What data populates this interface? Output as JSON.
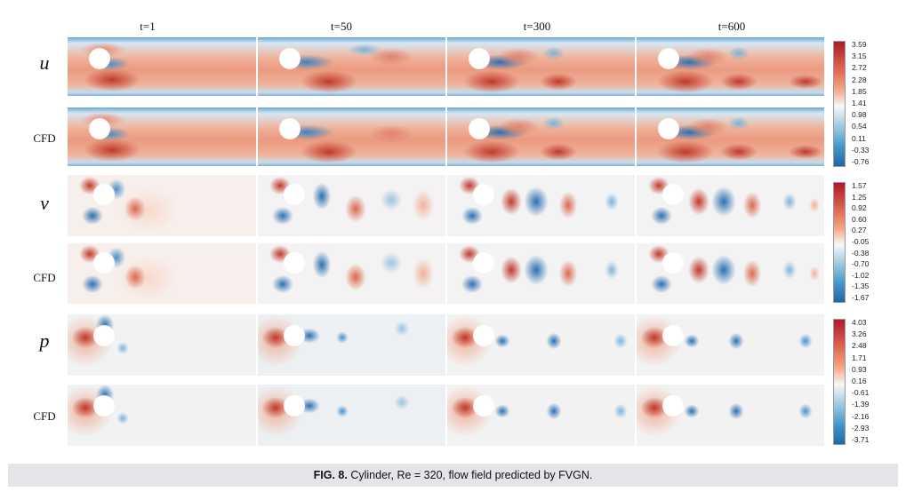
{
  "figure": {
    "columns": [
      "t=1",
      "t=50",
      "t=300",
      "t=600"
    ],
    "rows": [
      {
        "label": "u",
        "kind": "symbol",
        "field": "u"
      },
      {
        "label": "CFD",
        "kind": "cfd",
        "field": "u"
      },
      {
        "label": "v",
        "kind": "symbol",
        "field": "v"
      },
      {
        "label": "CFD",
        "kind": "cfd",
        "field": "v"
      },
      {
        "label": "p",
        "kind": "symbol",
        "field": "p"
      },
      {
        "label": "CFD",
        "kind": "cfd",
        "field": "p"
      }
    ],
    "colorbars": [
      {
        "field": "u",
        "ticks": [
          "3.59",
          "3.15",
          "2.72",
          "2.28",
          "1.85",
          "1.41",
          "0.98",
          "0.54",
          "0.11",
          "-0.33",
          "-0.76"
        ]
      },
      {
        "field": "v",
        "ticks": [
          "1.57",
          "1.25",
          "0.92",
          "0.60",
          "0.27",
          "-0.05",
          "-0.38",
          "-0.70",
          "-1.02",
          "-1.35",
          "-1.67"
        ]
      },
      {
        "field": "p",
        "ticks": [
          "4.03",
          "3.26",
          "2.48",
          "1.71",
          "0.93",
          "0.16",
          "-0.61",
          "-1.39",
          "-2.16",
          "-2.93",
          "-3.71"
        ]
      }
    ],
    "colormap": {
      "high": "#b2182b",
      "mid": "#f7f7f7",
      "low": "#2166ac"
    }
  },
  "caption": {
    "label": "FIG. 8.",
    "text": " Cylinder, Re = 320, flow field predicted by FVGN."
  }
}
